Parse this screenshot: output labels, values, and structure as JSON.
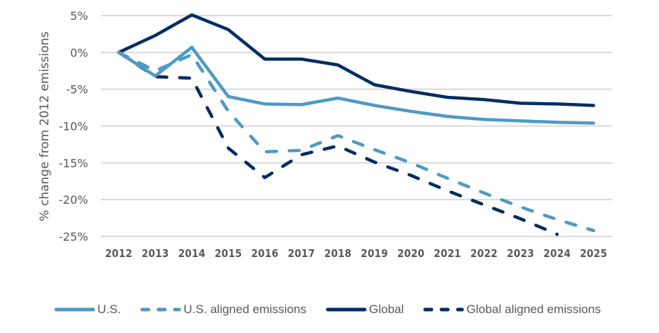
{
  "chart_data": {
    "type": "line",
    "title": "",
    "xlabel": "",
    "ylabel": "% change from 2012 emissions",
    "ylim": [
      -25,
      5
    ],
    "yticks": [
      5,
      0,
      -5,
      -10,
      -15,
      -20,
      -25
    ],
    "ytick_labels": [
      "5%",
      "0%",
      "-5%",
      "-10%",
      "-15%",
      "-20%",
      "-25%"
    ],
    "grid": true,
    "legend_position": "bottom",
    "categories": [
      "2012",
      "2013",
      "2014",
      "2015",
      "2016",
      "2017",
      "2018",
      "2019",
      "2020",
      "2021",
      "2022",
      "2023",
      "2024",
      "2025"
    ],
    "series": [
      {
        "name": "U.S.",
        "color": "#4e9ac4",
        "dashed": false,
        "values": [
          0,
          -3.2,
          0.7,
          -6.0,
          -7.0,
          -7.1,
          -6.2,
          -7.2,
          -8.0,
          -8.7,
          -9.1,
          -9.3,
          -9.5,
          -9.6
        ]
      },
      {
        "name": "U.S. aligned emissions",
        "color": "#4e9ac4",
        "dashed": true,
        "values": [
          0,
          -2.5,
          -0.3,
          -8.0,
          -13.5,
          -13.3,
          -11.3,
          -13.2,
          -15.0,
          -17.1,
          -19.1,
          -21.0,
          -22.7,
          -24.2
        ]
      },
      {
        "name": "Global",
        "color": "#002d62",
        "dashed": false,
        "values": [
          0,
          2.3,
          5.1,
          3.1,
          -0.9,
          -0.9,
          -1.7,
          -4.4,
          -5.3,
          -6.1,
          -6.4,
          -6.9,
          -7.0,
          -7.2
        ]
      },
      {
        "name": "Global aligned emissions",
        "color": "#002d62",
        "dashed": true,
        "values": [
          0,
          -3.3,
          -3.5,
          -13.0,
          -17.0,
          -13.9,
          -12.7,
          -14.9,
          -16.7,
          -18.8,
          -20.7,
          -22.6,
          -24.7,
          null
        ]
      }
    ]
  }
}
